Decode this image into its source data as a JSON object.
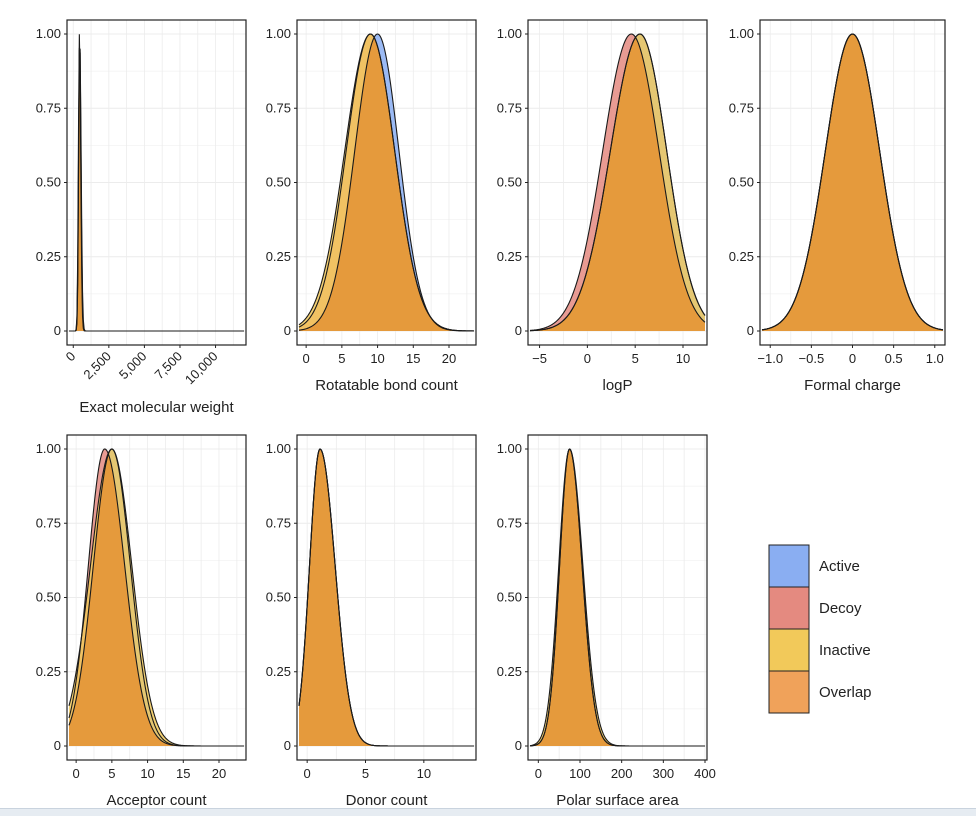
{
  "chart_data": [
    {
      "type": "area",
      "xlabel": "Exact molecular weight",
      "ylabel": "",
      "xticks": [
        "0",
        "2,500",
        "5,000",
        "7,500",
        "10,000"
      ],
      "xtick_values": [
        0,
        2500,
        5000,
        7500,
        10000
      ],
      "xlim": [
        -300,
        12000
      ],
      "yticks": [
        "0",
        "0.25",
        "0.50",
        "0.75",
        "1.00"
      ],
      "ylim": [
        0,
        1
      ],
      "series": [
        {
          "name": "Active",
          "peak": 450,
          "sd_left": 70,
          "sd_right": 90,
          "floor": 0.0
        },
        {
          "name": "Decoy",
          "peak": 430,
          "sd_left": 70,
          "sd_right": 90,
          "floor": 0.0
        },
        {
          "name": "Inactive",
          "peak": 450,
          "sd_left": 75,
          "sd_right": 100,
          "floor": 0.0
        }
      ]
    },
    {
      "type": "area",
      "xlabel": "Rotatable bond count",
      "ylabel": "",
      "xticks": [
        "0",
        "5",
        "10",
        "15",
        "20"
      ],
      "xtick_values": [
        0,
        5,
        10,
        15,
        20
      ],
      "xlim": [
        -1,
        23.5
      ],
      "yticks": [
        "0",
        "0.25",
        "0.50",
        "0.75",
        "1.00"
      ],
      "ylim": [
        0,
        1
      ],
      "series": [
        {
          "name": "Active",
          "peak": 10,
          "sd_left": 3.2,
          "sd_right": 3.0,
          "floor": 0.0
        },
        {
          "name": "Decoy",
          "peak": 9,
          "sd_left": 3.4,
          "sd_right": 3.4,
          "floor": 0.0
        },
        {
          "name": "Inactive",
          "peak": 9,
          "sd_left": 3.6,
          "sd_right": 3.4,
          "floor": 0.0
        }
      ]
    },
    {
      "type": "area",
      "xlabel": "logP",
      "ylabel": "",
      "xticks": [
        "−5",
        "0",
        "5",
        "10"
      ],
      "xtick_values": [
        -5,
        0,
        5,
        10
      ],
      "xlim": [
        -6,
        12.3
      ],
      "yticks": [
        "0",
        "0.25",
        "0.50",
        "0.75",
        "1.00"
      ],
      "ylim": [
        0,
        1
      ],
      "series": [
        {
          "name": "Active",
          "peak": 5.5,
          "sd_left": 3.1,
          "sd_right": 2.8,
          "floor": 0.0
        },
        {
          "name": "Decoy",
          "peak": 4.6,
          "sd_left": 3.0,
          "sd_right": 2.9,
          "floor": 0.0
        },
        {
          "name": "Inactive",
          "peak": 5.5,
          "sd_left": 3.1,
          "sd_right": 2.8,
          "floor": 0.0
        }
      ]
    },
    {
      "type": "area",
      "xlabel": "Formal charge",
      "ylabel": "",
      "xticks": [
        "−1.0",
        "−0.5",
        "0",
        "0.5",
        "1.0"
      ],
      "xtick_values": [
        -1,
        -0.5,
        0,
        0.5,
        1
      ],
      "xlim": [
        -1.1,
        1.1
      ],
      "yticks": [
        "0",
        "0.25",
        "0.50",
        "0.75",
        "1.00"
      ],
      "ylim": [
        0,
        1
      ],
      "series": [
        {
          "name": "Active",
          "peak": 0,
          "sd_left": 0.33,
          "sd_right": 0.33,
          "floor": 0.0
        },
        {
          "name": "Decoy",
          "peak": 0,
          "sd_left": 0.33,
          "sd_right": 0.33,
          "floor": 0.0
        },
        {
          "name": "Inactive",
          "peak": 0,
          "sd_left": 0.33,
          "sd_right": 0.33,
          "floor": 0.0
        }
      ]
    },
    {
      "type": "area",
      "xlabel": "Acceptor count",
      "ylabel": "",
      "xticks": [
        "0",
        "5",
        "10",
        "15",
        "20"
      ],
      "xtick_values": [
        0,
        5,
        10,
        15,
        20
      ],
      "xlim": [
        -1,
        23.5
      ],
      "yticks": [
        "0",
        "0.25",
        "0.50",
        "0.75",
        "1.00"
      ],
      "ylim": [
        0,
        1
      ],
      "series": [
        {
          "name": "Active",
          "peak": 5,
          "sd_left": 2.6,
          "sd_right": 2.6,
          "floor": 0.0
        },
        {
          "name": "Decoy",
          "peak": 4,
          "sd_left": 2.3,
          "sd_right": 2.8,
          "floor": 0.0
        },
        {
          "name": "Inactive",
          "peak": 5,
          "sd_left": 3.0,
          "sd_right": 2.8,
          "floor": 0.0
        }
      ]
    },
    {
      "type": "area",
      "xlabel": "Donor count",
      "ylabel": "",
      "xticks": [
        "0",
        "5",
        "10"
      ],
      "xtick_values": [
        0,
        5,
        10
      ],
      "xlim": [
        -0.7,
        14.3
      ],
      "yticks": [
        "0",
        "0.25",
        "0.50",
        "0.75",
        "1.00"
      ],
      "ylim": [
        0,
        1
      ],
      "series": [
        {
          "name": "Active",
          "peak": 1.1,
          "sd_left": 0.9,
          "sd_right": 1.3,
          "floor": 0.0
        },
        {
          "name": "Decoy",
          "peak": 1.1,
          "sd_left": 0.9,
          "sd_right": 1.3,
          "floor": 0.0
        },
        {
          "name": "Inactive",
          "peak": 1.1,
          "sd_left": 0.9,
          "sd_right": 1.3,
          "floor": 0.0
        }
      ]
    },
    {
      "type": "area",
      "xlabel": "Polar surface area",
      "ylabel": "",
      "xticks": [
        "0",
        "100",
        "200",
        "300",
        "400"
      ],
      "xtick_values": [
        0,
        100,
        200,
        300,
        400
      ],
      "xlim": [
        -20,
        400
      ],
      "yticks": [
        "0",
        "0.25",
        "0.50",
        "0.75",
        "1.00"
      ],
      "ylim": [
        0,
        1
      ],
      "series": [
        {
          "name": "Active",
          "peak": 75,
          "sd_left": 24,
          "sd_right": 30,
          "floor": 0.0
        },
        {
          "name": "Decoy",
          "peak": 75,
          "sd_left": 24,
          "sd_right": 30,
          "floor": 0.0
        },
        {
          "name": "Inactive",
          "peak": 75,
          "sd_left": 26,
          "sd_right": 32,
          "floor": 0.0
        }
      ]
    }
  ],
  "legend": {
    "position": "right",
    "items": [
      {
        "label": "Active",
        "color": "#8aaef2"
      },
      {
        "label": "Decoy",
        "color": "#e48a80"
      },
      {
        "label": "Inactive",
        "color": "#f2c95a"
      },
      {
        "label": "Overlap",
        "color": "#f0a25a"
      }
    ]
  },
  "colors": {
    "overlap_fill": "#e59a3c",
    "panel_border": "#222222",
    "grid": "#ececec",
    "curve_line": "#1a1a1a"
  }
}
